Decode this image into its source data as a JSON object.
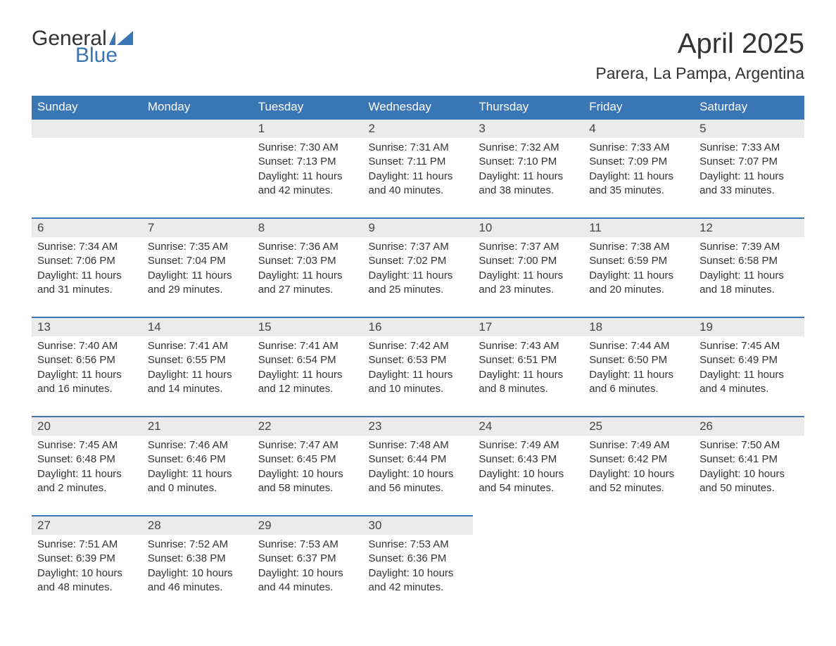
{
  "logo": {
    "text1": "General",
    "text2": "Blue",
    "text_color": "#333333",
    "accent_color": "#3a75b5"
  },
  "title": "April 2025",
  "location": "Parera, La Pampa, Argentina",
  "colors": {
    "header_bg": "#3a75b5",
    "header_text": "#ffffff",
    "daynum_bg": "#ebebeb",
    "row_border": "#3a75b5",
    "body_text": "#333333",
    "page_bg": "#ffffff"
  },
  "fonts": {
    "title_size": 40,
    "location_size": 23,
    "dayheader_size": 17,
    "body_size": 15
  },
  "day_headers": [
    "Sunday",
    "Monday",
    "Tuesday",
    "Wednesday",
    "Thursday",
    "Friday",
    "Saturday"
  ],
  "weeks": [
    [
      null,
      null,
      {
        "n": "1",
        "sunrise": "7:30 AM",
        "sunset": "7:13 PM",
        "dl_h": "11",
        "dl_m": "42"
      },
      {
        "n": "2",
        "sunrise": "7:31 AM",
        "sunset": "7:11 PM",
        "dl_h": "11",
        "dl_m": "40"
      },
      {
        "n": "3",
        "sunrise": "7:32 AM",
        "sunset": "7:10 PM",
        "dl_h": "11",
        "dl_m": "38"
      },
      {
        "n": "4",
        "sunrise": "7:33 AM",
        "sunset": "7:09 PM",
        "dl_h": "11",
        "dl_m": "35"
      },
      {
        "n": "5",
        "sunrise": "7:33 AM",
        "sunset": "7:07 PM",
        "dl_h": "11",
        "dl_m": "33"
      }
    ],
    [
      {
        "n": "6",
        "sunrise": "7:34 AM",
        "sunset": "7:06 PM",
        "dl_h": "11",
        "dl_m": "31"
      },
      {
        "n": "7",
        "sunrise": "7:35 AM",
        "sunset": "7:04 PM",
        "dl_h": "11",
        "dl_m": "29"
      },
      {
        "n": "8",
        "sunrise": "7:36 AM",
        "sunset": "7:03 PM",
        "dl_h": "11",
        "dl_m": "27"
      },
      {
        "n": "9",
        "sunrise": "7:37 AM",
        "sunset": "7:02 PM",
        "dl_h": "11",
        "dl_m": "25"
      },
      {
        "n": "10",
        "sunrise": "7:37 AM",
        "sunset": "7:00 PM",
        "dl_h": "11",
        "dl_m": "23"
      },
      {
        "n": "11",
        "sunrise": "7:38 AM",
        "sunset": "6:59 PM",
        "dl_h": "11",
        "dl_m": "20"
      },
      {
        "n": "12",
        "sunrise": "7:39 AM",
        "sunset": "6:58 PM",
        "dl_h": "11",
        "dl_m": "18"
      }
    ],
    [
      {
        "n": "13",
        "sunrise": "7:40 AM",
        "sunset": "6:56 PM",
        "dl_h": "11",
        "dl_m": "16"
      },
      {
        "n": "14",
        "sunrise": "7:41 AM",
        "sunset": "6:55 PM",
        "dl_h": "11",
        "dl_m": "14"
      },
      {
        "n": "15",
        "sunrise": "7:41 AM",
        "sunset": "6:54 PM",
        "dl_h": "11",
        "dl_m": "12"
      },
      {
        "n": "16",
        "sunrise": "7:42 AM",
        "sunset": "6:53 PM",
        "dl_h": "11",
        "dl_m": "10"
      },
      {
        "n": "17",
        "sunrise": "7:43 AM",
        "sunset": "6:51 PM",
        "dl_h": "11",
        "dl_m": "8"
      },
      {
        "n": "18",
        "sunrise": "7:44 AM",
        "sunset": "6:50 PM",
        "dl_h": "11",
        "dl_m": "6"
      },
      {
        "n": "19",
        "sunrise": "7:45 AM",
        "sunset": "6:49 PM",
        "dl_h": "11",
        "dl_m": "4"
      }
    ],
    [
      {
        "n": "20",
        "sunrise": "7:45 AM",
        "sunset": "6:48 PM",
        "dl_h": "11",
        "dl_m": "2"
      },
      {
        "n": "21",
        "sunrise": "7:46 AM",
        "sunset": "6:46 PM",
        "dl_h": "11",
        "dl_m": "0"
      },
      {
        "n": "22",
        "sunrise": "7:47 AM",
        "sunset": "6:45 PM",
        "dl_h": "10",
        "dl_m": "58"
      },
      {
        "n": "23",
        "sunrise": "7:48 AM",
        "sunset": "6:44 PM",
        "dl_h": "10",
        "dl_m": "56"
      },
      {
        "n": "24",
        "sunrise": "7:49 AM",
        "sunset": "6:43 PM",
        "dl_h": "10",
        "dl_m": "54"
      },
      {
        "n": "25",
        "sunrise": "7:49 AM",
        "sunset": "6:42 PM",
        "dl_h": "10",
        "dl_m": "52"
      },
      {
        "n": "26",
        "sunrise": "7:50 AM",
        "sunset": "6:41 PM",
        "dl_h": "10",
        "dl_m": "50"
      }
    ],
    [
      {
        "n": "27",
        "sunrise": "7:51 AM",
        "sunset": "6:39 PM",
        "dl_h": "10",
        "dl_m": "48"
      },
      {
        "n": "28",
        "sunrise": "7:52 AM",
        "sunset": "6:38 PM",
        "dl_h": "10",
        "dl_m": "46"
      },
      {
        "n": "29",
        "sunrise": "7:53 AM",
        "sunset": "6:37 PM",
        "dl_h": "10",
        "dl_m": "44"
      },
      {
        "n": "30",
        "sunrise": "7:53 AM",
        "sunset": "6:36 PM",
        "dl_h": "10",
        "dl_m": "42"
      },
      null,
      null,
      null
    ]
  ],
  "labels": {
    "sunrise": "Sunrise:",
    "sunset": "Sunset:",
    "daylight": "Daylight:",
    "hours": "hours",
    "and": "and",
    "minutes": "minutes."
  }
}
